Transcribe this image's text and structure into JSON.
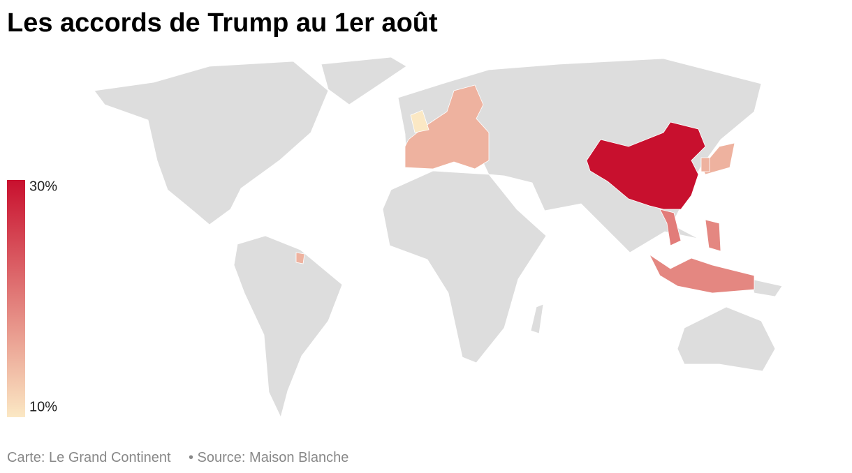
{
  "title": "Les accords de Trump au 1er août",
  "map": {
    "type": "choropleth",
    "color_scale": {
      "min": {
        "value": 10,
        "label": "10%"
      },
      "max": {
        "value": 30,
        "label": "30%"
      },
      "colors": [
        "#fbe8c4",
        "#c8102e"
      ]
    },
    "land_color": "#dddddd",
    "regions": [
      30,
      20,
      19,
      19,
      15,
      15,
      15,
      10,
      15
    ]
  },
  "footer": {
    "credit": "Carte: Le Grand Continent",
    "source": "• Source: Maison Blanche"
  }
}
